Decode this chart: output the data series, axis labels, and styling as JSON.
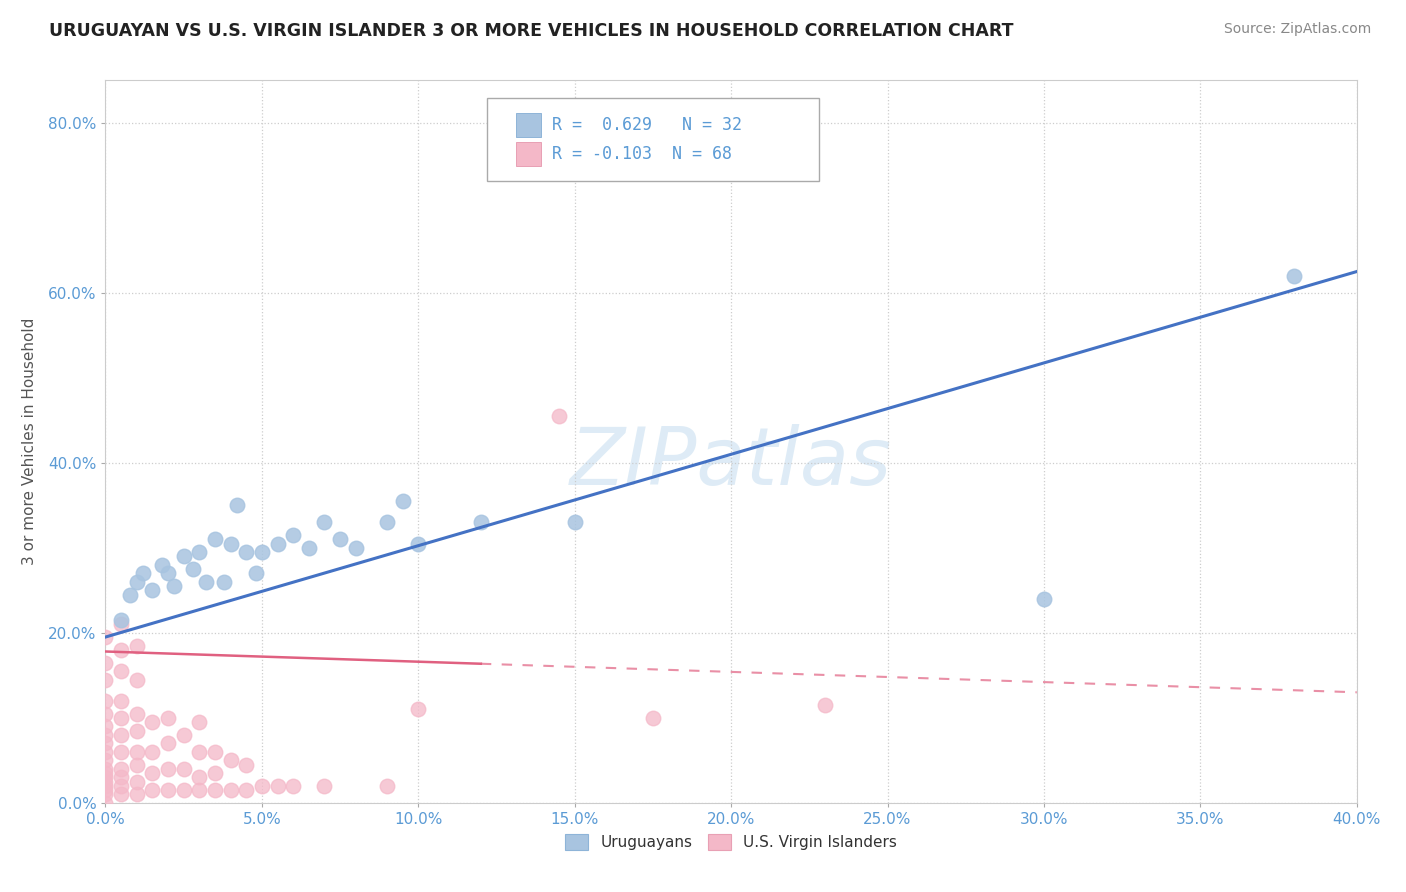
{
  "title": "URUGUAYAN VS U.S. VIRGIN ISLANDER 3 OR MORE VEHICLES IN HOUSEHOLD CORRELATION CHART",
  "source": "Source: ZipAtlas.com",
  "ylabel": "3 or more Vehicles in Household",
  "xlabel": "",
  "xlim": [
    0.0,
    0.4
  ],
  "ylim": [
    0.0,
    0.85
  ],
  "x_ticks": [
    0.0,
    0.05,
    0.1,
    0.15,
    0.2,
    0.25,
    0.3,
    0.35,
    0.4
  ],
  "y_ticks": [
    0.0,
    0.2,
    0.4,
    0.6,
    0.8
  ],
  "x_tick_labels": [
    "0.0%",
    "5.0%",
    "10.0%",
    "15.0%",
    "20.0%",
    "25.0%",
    "30.0%",
    "35.0%",
    "40.0%"
  ],
  "y_tick_labels": [
    "0.0%",
    "20.0%",
    "40.0%",
    "60.0%",
    "80.0%"
  ],
  "R_uruguayan": 0.629,
  "N_uruguayan": 32,
  "R_virgin": -0.103,
  "N_virgin": 68,
  "color_uruguayan": "#a8c4e0",
  "color_virgin": "#f4b8c8",
  "line_color_uruguayan": "#4472c4",
  "line_color_virgin": "#e06080",
  "watermark": "ZIPatlas",
  "background_color": "#ffffff",
  "grid_color": "#c8c8c8",
  "uruguayan_x": [
    0.005,
    0.008,
    0.01,
    0.012,
    0.015,
    0.018,
    0.02,
    0.022,
    0.025,
    0.028,
    0.03,
    0.032,
    0.035,
    0.038,
    0.04,
    0.042,
    0.045,
    0.048,
    0.05,
    0.055,
    0.06,
    0.065,
    0.07,
    0.075,
    0.08,
    0.09,
    0.095,
    0.1,
    0.12,
    0.15,
    0.3,
    0.38
  ],
  "uruguayan_y": [
    0.215,
    0.245,
    0.26,
    0.27,
    0.25,
    0.28,
    0.27,
    0.255,
    0.29,
    0.275,
    0.295,
    0.26,
    0.31,
    0.26,
    0.305,
    0.35,
    0.295,
    0.27,
    0.295,
    0.305,
    0.315,
    0.3,
    0.33,
    0.31,
    0.3,
    0.33,
    0.355,
    0.305,
    0.33,
    0.33,
    0.24,
    0.62
  ],
  "virgin_x": [
    0.0,
    0.0,
    0.0,
    0.0,
    0.0,
    0.0,
    0.0,
    0.0,
    0.0,
    0.0,
    0.0,
    0.0,
    0.0,
    0.0,
    0.0,
    0.0,
    0.0,
    0.0,
    0.005,
    0.005,
    0.005,
    0.005,
    0.005,
    0.005,
    0.005,
    0.005,
    0.005,
    0.005,
    0.005,
    0.01,
    0.01,
    0.01,
    0.01,
    0.01,
    0.01,
    0.01,
    0.01,
    0.015,
    0.015,
    0.015,
    0.015,
    0.02,
    0.02,
    0.02,
    0.02,
    0.025,
    0.025,
    0.025,
    0.03,
    0.03,
    0.03,
    0.03,
    0.035,
    0.035,
    0.035,
    0.04,
    0.04,
    0.045,
    0.045,
    0.05,
    0.055,
    0.06,
    0.07,
    0.09,
    0.1,
    0.145,
    0.175,
    0.23
  ],
  "virgin_y": [
    0.0,
    0.01,
    0.015,
    0.02,
    0.025,
    0.03,
    0.035,
    0.04,
    0.05,
    0.06,
    0.07,
    0.08,
    0.09,
    0.105,
    0.12,
    0.145,
    0.165,
    0.195,
    0.01,
    0.02,
    0.03,
    0.04,
    0.06,
    0.08,
    0.1,
    0.12,
    0.155,
    0.18,
    0.21,
    0.01,
    0.025,
    0.045,
    0.06,
    0.085,
    0.105,
    0.145,
    0.185,
    0.015,
    0.035,
    0.06,
    0.095,
    0.015,
    0.04,
    0.07,
    0.1,
    0.015,
    0.04,
    0.08,
    0.015,
    0.03,
    0.06,
    0.095,
    0.015,
    0.035,
    0.06,
    0.015,
    0.05,
    0.015,
    0.045,
    0.02,
    0.02,
    0.02,
    0.02,
    0.02,
    0.11,
    0.455,
    0.1,
    0.115
  ]
}
